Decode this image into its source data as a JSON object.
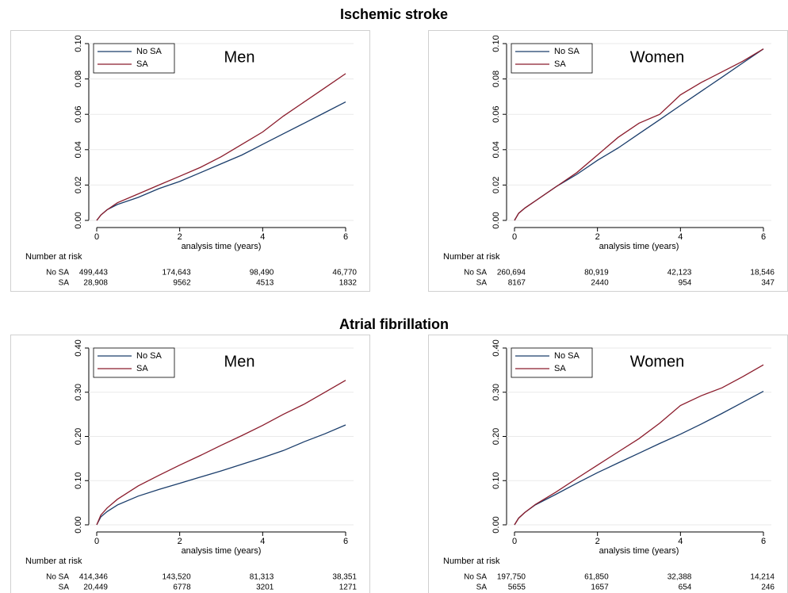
{
  "section_titles": [
    "Ischemic stroke",
    "Atrial fibrillation"
  ],
  "chart_data": [
    {
      "type": "line",
      "title": "Men",
      "x_label": "analysis time (years)",
      "x": [
        0,
        0.1,
        0.25,
        0.5,
        1,
        1.5,
        2,
        2.5,
        3,
        3.5,
        4,
        4.5,
        5,
        5.5,
        6
      ],
      "xlim": [
        0,
        6
      ],
      "xticks": [
        0,
        2,
        4,
        6
      ],
      "ylim": [
        0,
        0.1
      ],
      "yticks": [
        {
          "value": 0,
          "label": "0.00"
        },
        {
          "value": 0.02,
          "label": "0.02"
        },
        {
          "value": 0.04,
          "label": "0.04"
        },
        {
          "value": 0.06,
          "label": "0.06"
        },
        {
          "value": 0.08,
          "label": "0.08"
        },
        {
          "value": 0.1,
          "label": "0.10"
        }
      ],
      "grid": true,
      "legend": "top-left",
      "series": [
        {
          "name": "No SA",
          "color": "#1a3d6b",
          "values": [
            0,
            0.003,
            0.006,
            0.009,
            0.013,
            0.018,
            0.022,
            0.027,
            0.032,
            0.037,
            0.043,
            0.049,
            0.055,
            0.061,
            0.067
          ]
        },
        {
          "name": "SA",
          "color": "#8b1c2c",
          "values": [
            0,
            0.003,
            0.006,
            0.01,
            0.015,
            0.02,
            0.025,
            0.03,
            0.036,
            0.043,
            0.05,
            0.059,
            0.067,
            0.075,
            0.083
          ]
        }
      ],
      "risk_table": {
        "title": "Number at risk",
        "rows": [
          {
            "name": "No SA",
            "cells": [
              "499,443",
              "174,643",
              "98,490",
              "46,770"
            ]
          },
          {
            "name": "SA",
            "cells": [
              "28,908",
              "9562",
              "4513",
              "1832"
            ]
          }
        ]
      }
    },
    {
      "type": "line",
      "title": "Women",
      "x_label": "analysis time (years)",
      "x": [
        0,
        0.1,
        0.25,
        0.5,
        1,
        1.5,
        2,
        2.5,
        3,
        3.5,
        4,
        4.5,
        5,
        5.5,
        6
      ],
      "xlim": [
        0,
        6
      ],
      "xticks": [
        0,
        2,
        4,
        6
      ],
      "ylim": [
        0,
        0.1
      ],
      "yticks": [
        {
          "value": 0,
          "label": "0.00"
        },
        {
          "value": 0.02,
          "label": "0.02"
        },
        {
          "value": 0.04,
          "label": "0.04"
        },
        {
          "value": 0.06,
          "label": "0.06"
        },
        {
          "value": 0.08,
          "label": "0.08"
        },
        {
          "value": 0.1,
          "label": "0.10"
        }
      ],
      "grid": true,
      "legend": "top-left",
      "series": [
        {
          "name": "No SA",
          "color": "#1a3d6b",
          "values": [
            0,
            0.004,
            0.007,
            0.011,
            0.019,
            0.026,
            0.034,
            0.041,
            0.049,
            0.057,
            0.065,
            0.073,
            0.081,
            0.089,
            0.097
          ]
        },
        {
          "name": "SA",
          "color": "#8b1c2c",
          "values": [
            0,
            0.004,
            0.007,
            0.011,
            0.019,
            0.027,
            0.037,
            0.047,
            0.055,
            0.06,
            0.071,
            0.078,
            0.084,
            0.09,
            0.097
          ]
        }
      ],
      "risk_table": {
        "title": "Number at risk",
        "rows": [
          {
            "name": "No SA",
            "cells": [
              "260,694",
              "80,919",
              "42,123",
              "18,546"
            ]
          },
          {
            "name": "SA",
            "cells": [
              "8167",
              "2440",
              "954",
              "347"
            ]
          }
        ]
      }
    },
    {
      "type": "line",
      "title": "Men",
      "x_label": "analysis time (years)",
      "x": [
        0,
        0.1,
        0.25,
        0.5,
        1,
        1.5,
        2,
        2.5,
        3,
        3.5,
        4,
        4.5,
        5,
        5.5,
        6
      ],
      "xlim": [
        0,
        6
      ],
      "xticks": [
        0,
        2,
        4,
        6
      ],
      "ylim": [
        0,
        0.4
      ],
      "yticks": [
        {
          "value": 0,
          "label": "0.00"
        },
        {
          "value": 0.1,
          "label": "0.10"
        },
        {
          "value": 0.2,
          "label": "0.20"
        },
        {
          "value": 0.3,
          "label": "0.30"
        },
        {
          "value": 0.4,
          "label": "0.40"
        }
      ],
      "grid": true,
      "legend": "top-left",
      "series": [
        {
          "name": "No SA",
          "color": "#1a3d6b",
          "values": [
            0,
            0.018,
            0.03,
            0.045,
            0.065,
            0.08,
            0.094,
            0.108,
            0.122,
            0.137,
            0.152,
            0.168,
            0.188,
            0.206,
            0.226
          ]
        },
        {
          "name": "SA",
          "color": "#8b1c2c",
          "values": [
            0,
            0.022,
            0.038,
            0.058,
            0.088,
            0.112,
            0.135,
            0.157,
            0.18,
            0.202,
            0.225,
            0.25,
            0.273,
            0.3,
            0.327
          ]
        }
      ],
      "risk_table": {
        "title": "Number at risk",
        "rows": [
          {
            "name": "No SA",
            "cells": [
              "414,346",
              "143,520",
              "81,313",
              "38,351"
            ]
          },
          {
            "name": "SA",
            "cells": [
              "20,449",
              "6778",
              "3201",
              "1271"
            ]
          }
        ]
      }
    },
    {
      "type": "line",
      "title": "Women",
      "x_label": "analysis time (years)",
      "x": [
        0,
        0.1,
        0.25,
        0.5,
        1,
        1.5,
        2,
        2.5,
        3,
        3.5,
        4,
        4.5,
        5,
        5.5,
        6
      ],
      "xlim": [
        0,
        6
      ],
      "xticks": [
        0,
        2,
        4,
        6
      ],
      "ylim": [
        0,
        0.4
      ],
      "yticks": [
        {
          "value": 0,
          "label": "0.00"
        },
        {
          "value": 0.1,
          "label": "0.10"
        },
        {
          "value": 0.2,
          "label": "0.20"
        },
        {
          "value": 0.3,
          "label": "0.30"
        },
        {
          "value": 0.4,
          "label": "0.40"
        }
      ],
      "grid": true,
      "legend": "top-left",
      "series": [
        {
          "name": "No SA",
          "color": "#1a3d6b",
          "values": [
            0,
            0.015,
            0.028,
            0.045,
            0.069,
            0.094,
            0.118,
            0.14,
            0.162,
            0.184,
            0.205,
            0.228,
            0.252,
            0.277,
            0.302
          ]
        },
        {
          "name": "SA",
          "color": "#8b1c2c",
          "values": [
            0,
            0.015,
            0.028,
            0.046,
            0.074,
            0.105,
            0.135,
            0.165,
            0.195,
            0.23,
            0.27,
            0.292,
            0.31,
            0.335,
            0.362
          ]
        }
      ],
      "risk_table": {
        "title": "Number at risk",
        "rows": [
          {
            "name": "No SA",
            "cells": [
              "197,750",
              "61,850",
              "32,388",
              "14,214"
            ]
          },
          {
            "name": "SA",
            "cells": [
              "5655",
              "1657",
              "654",
              "246"
            ]
          }
        ]
      }
    }
  ]
}
